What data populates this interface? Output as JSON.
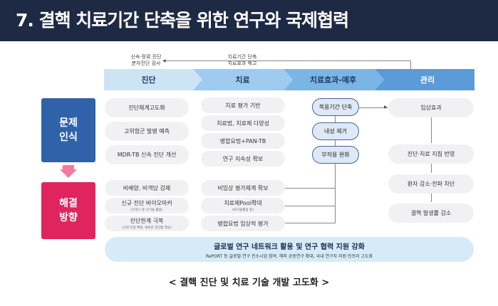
{
  "title": "7. 결핵 치료기간 단축을 위한 연구와 국제협력",
  "feedback": {
    "left_note": [
      "신속·정확 진단",
      "분자진단 검사"
    ],
    "right_note": [
      "치료기간 단축",
      "치료효과 제고"
    ]
  },
  "stages": [
    "진단",
    "치료",
    "치료효과-예후",
    "관리"
  ],
  "labels": {
    "problem": [
      "문제",
      "인식"
    ],
    "solution": [
      "해결",
      "방향"
    ]
  },
  "diagnosis_problems": [
    "진단체계고도화",
    "고위험군 발병 예측",
    "MDR-TB 신속 진단 개선"
  ],
  "treatment_problems": [
    "치료 평가 기반",
    "치료법, 치료제 다양성",
    "병합요법+PAN-TB",
    "연구 지속성 확보"
  ],
  "diagnosis_solutions": [
    {
      "text": "비배양, 비객담 검체",
      "sub": ""
    },
    {
      "text": "신규 진단 바이오마커",
      "sub": "(오믹스 등 신기술 활용)"
    },
    {
      "text": "진단한계 극복",
      "sub": "(신약 포함 확대, 새로운 진단법 필요)"
    }
  ],
  "treatment_solutions": [
    {
      "text": "비임상 평가체계 확보",
      "sub": ""
    },
    {
      "text": "치료제Pool확대",
      "sub": "(AI기술활용 등)"
    },
    {
      "text": "병합요법 임상적 평가",
      "sub": ""
    }
  ],
  "outcomes": [
    "복용기간 단축",
    "내성 제거",
    "부작용 완화"
  ],
  "management": [
    "임상효과",
    "진단·치료 지침 반영",
    "환자 감소·전파 차단",
    "결핵 발생률 감소"
  ],
  "global": {
    "title": "글로벌 연구 네트워크 활용 및 연구 협력 지원 강화",
    "sub": "RePORT 등 글로벌 연구 컨소시엄 참여, 해외 공동연구 확대, 국내 연구자 지원 인프라 고도화"
  },
  "footer": "< 결핵 진단 및 치료 기술 개발 고도화 >",
  "colors": {
    "header": "#1e2a44",
    "problem": "#2f62a8",
    "solution": "#e0245e"
  }
}
